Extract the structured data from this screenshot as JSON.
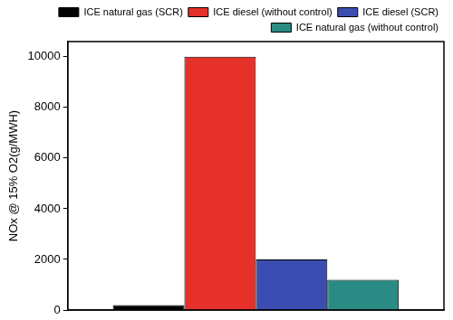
{
  "chart_data": {
    "type": "bar",
    "y_label": "NOx @ 15% O2(g/MWH)",
    "categories": [
      null
    ],
    "series": [
      {
        "name": "ICE natural gas (SCR)",
        "color": "#000000",
        "values": [
          200
        ]
      },
      {
        "name": "ICE diesel (without control)",
        "color": "#e5312a",
        "values": [
          10000
        ]
      },
      {
        "name": "ICE diesel (SCR)",
        "color": "#3c4db2",
        "values": [
          2000
        ]
      },
      {
        "name": "ICE natural gas (without control)",
        "color": "#2a8b84",
        "values": [
          1200
        ]
      }
    ],
    "ylim": [
      0,
      10600
    ],
    "yticks": [
      0,
      2000,
      4000,
      6000,
      8000,
      10000
    ],
    "grid": false,
    "legend": "upper right",
    "tick_labels": "y"
  }
}
